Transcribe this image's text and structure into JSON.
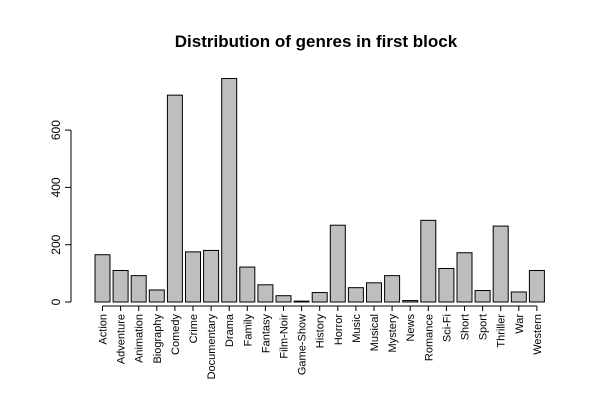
{
  "chart_data": {
    "type": "bar",
    "title": "Distribution of genres in first block",
    "xlabel": "",
    "ylabel": "",
    "categories": [
      "Action",
      "Adventure",
      "Animation",
      "Biography",
      "Comedy",
      "Crime",
      "Documentary",
      "Drama",
      "Family",
      "Fantasy",
      "Film-Noir",
      "Game-Show",
      "History",
      "Horror",
      "Music",
      "Musical",
      "Mystery",
      "News",
      "Romance",
      "Sci-Fi",
      "Short",
      "Sport",
      "Thriller",
      "War",
      "Western"
    ],
    "values": [
      165,
      110,
      92,
      42,
      722,
      175,
      180,
      780,
      122,
      60,
      22,
      3,
      33,
      268,
      50,
      67,
      92,
      5,
      285,
      117,
      172,
      40,
      265,
      35,
      110
    ],
    "ylim": [
      0,
      780
    ],
    "yticks": [
      0,
      200,
      400,
      600
    ],
    "ytick_labels": [
      "0",
      "200",
      "400",
      "600"
    ],
    "bar_color": "#bebebe",
    "grid": false,
    "legend": "none"
  }
}
